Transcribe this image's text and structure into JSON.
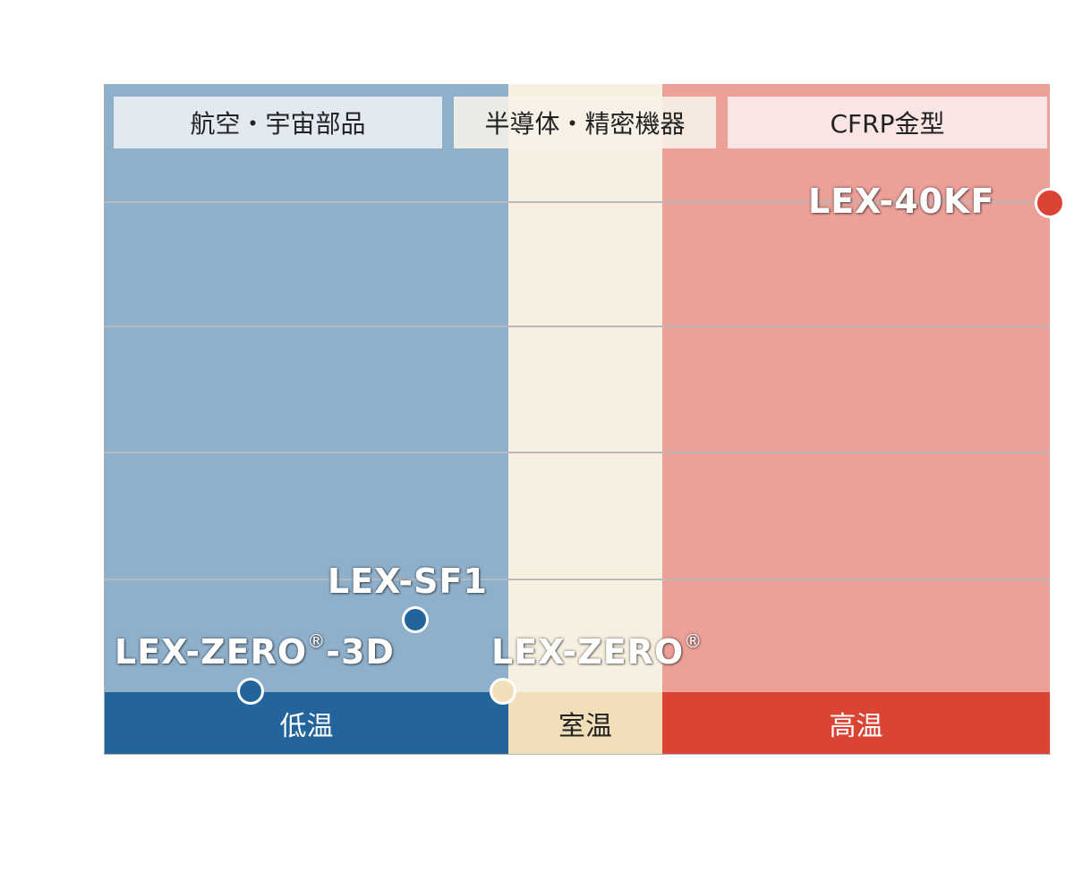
{
  "chart_data": {
    "type": "scatter",
    "categories": [
      "低温",
      "室温",
      "高温"
    ],
    "category_colors": [
      "#22649b",
      "#f0dfb9",
      "#d94435"
    ],
    "industries": [
      "航空・宇宙部品",
      "半導体・精密機器",
      "CFRP金型"
    ],
    "series": [
      {
        "name": "LEX-ZERO®-3D",
        "category": "低温",
        "color": "#22649b"
      },
      {
        "name": "LEX-SF1",
        "category": "低温",
        "color": "#22649b"
      },
      {
        "name": "LEX-ZERO®",
        "category": "室温",
        "color": "#f0dfb9"
      },
      {
        "name": "LEX-40KF",
        "category": "高温",
        "color": "#d94435"
      }
    ],
    "grid": true,
    "labels": {
      "zero3d_main": "LEX-ZERO",
      "zero3d_reg": "®",
      "zero3d_tail": "-3D",
      "sf1": "LEX-SF1",
      "zero_main": "LEX-ZERO",
      "zero_reg": "®",
      "kf40": "LEX-40KF"
    }
  }
}
